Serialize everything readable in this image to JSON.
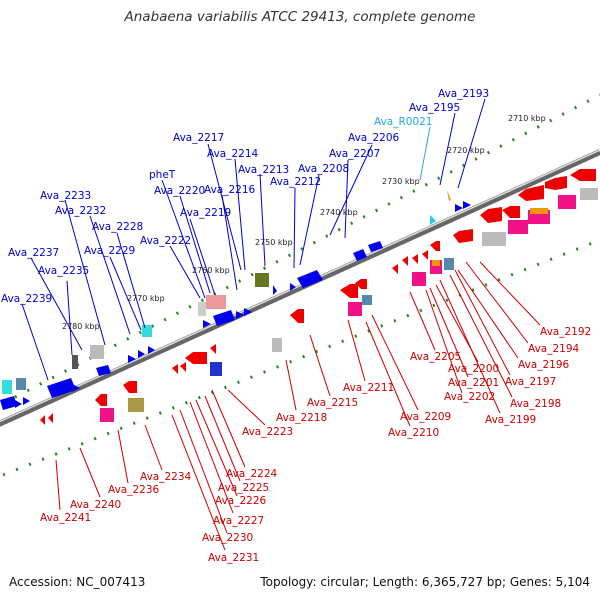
{
  "title": "Anabaena variabilis ATCC 29413, complete genome",
  "accession": "Accession: NC_007413",
  "summary": "Topology: circular; Length: 6,365,727 bp; Genes: 5,104",
  "kbp_labels": [
    "2710 kbp",
    "2720 kbp",
    "2730 kbp",
    "2740 kbp",
    "2750 kbp",
    "2760 kbp",
    "2770 kbp",
    "2780 kbp"
  ],
  "top_labels": [
    "Ava_2193",
    "Ava_2195",
    "Ava_R0021",
    "Ava_2206",
    "Ava_2207",
    "Ava_2208",
    "Ava_2212",
    "Ava_2213",
    "Ava_2214",
    "Ava_2216",
    "Ava_2217",
    "Ava_2219",
    "Ava_2220",
    "pheT",
    "Ava_2222",
    "Ava_2228",
    "Ava_2229",
    "Ava_2232",
    "Ava_2233",
    "Ava_2235",
    "Ava_2237",
    "Ava_2239"
  ],
  "bottom_labels": [
    "Ava_2192",
    "Ava_2194",
    "Ava_2196",
    "Ava_2197",
    "Ava_2198",
    "Ava_2199",
    "Ava_2200",
    "Ava_2201",
    "Ava_2202",
    "Ava_2205",
    "Ava_2209",
    "Ava_2210",
    "Ava_2211",
    "Ava_2215",
    "Ava_2218",
    "Ava_2223",
    "Ava_2224",
    "Ava_2225",
    "Ava_2226",
    "Ava_2227",
    "Ava_2230",
    "Ava_2231",
    "Ava_2234",
    "Ava_2236",
    "Ava_2240",
    "Ava_2241"
  ],
  "colors": {
    "forward": "#0000ee",
    "reverse": "#ee0000",
    "rna": "#22ccee",
    "backbone": "#777777",
    "tick": "#228822"
  }
}
